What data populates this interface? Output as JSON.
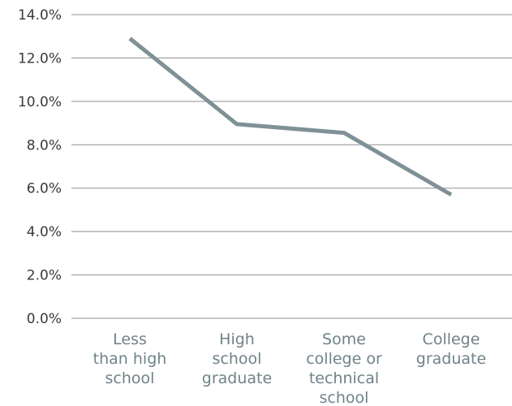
{
  "chart_data": {
    "type": "line",
    "categories": [
      [
        "Less",
        "than high",
        "school"
      ],
      [
        "High",
        "school",
        "graduate"
      ],
      [
        "Some",
        "college or",
        "technical",
        "school"
      ],
      [
        "College",
        "graduate"
      ]
    ],
    "series": [
      {
        "values": [
          12.9,
          8.95,
          8.55,
          5.7
        ],
        "color": "#7f9197"
      }
    ],
    "y_tick_labels": [
      "0.0%",
      "2.0%",
      "4.0%",
      "6.0%",
      "8.0%",
      "10.0%",
      "12.0%",
      "14.0%"
    ],
    "ylim": [
      0,
      14
    ],
    "grid": true,
    "legend": "none"
  }
}
